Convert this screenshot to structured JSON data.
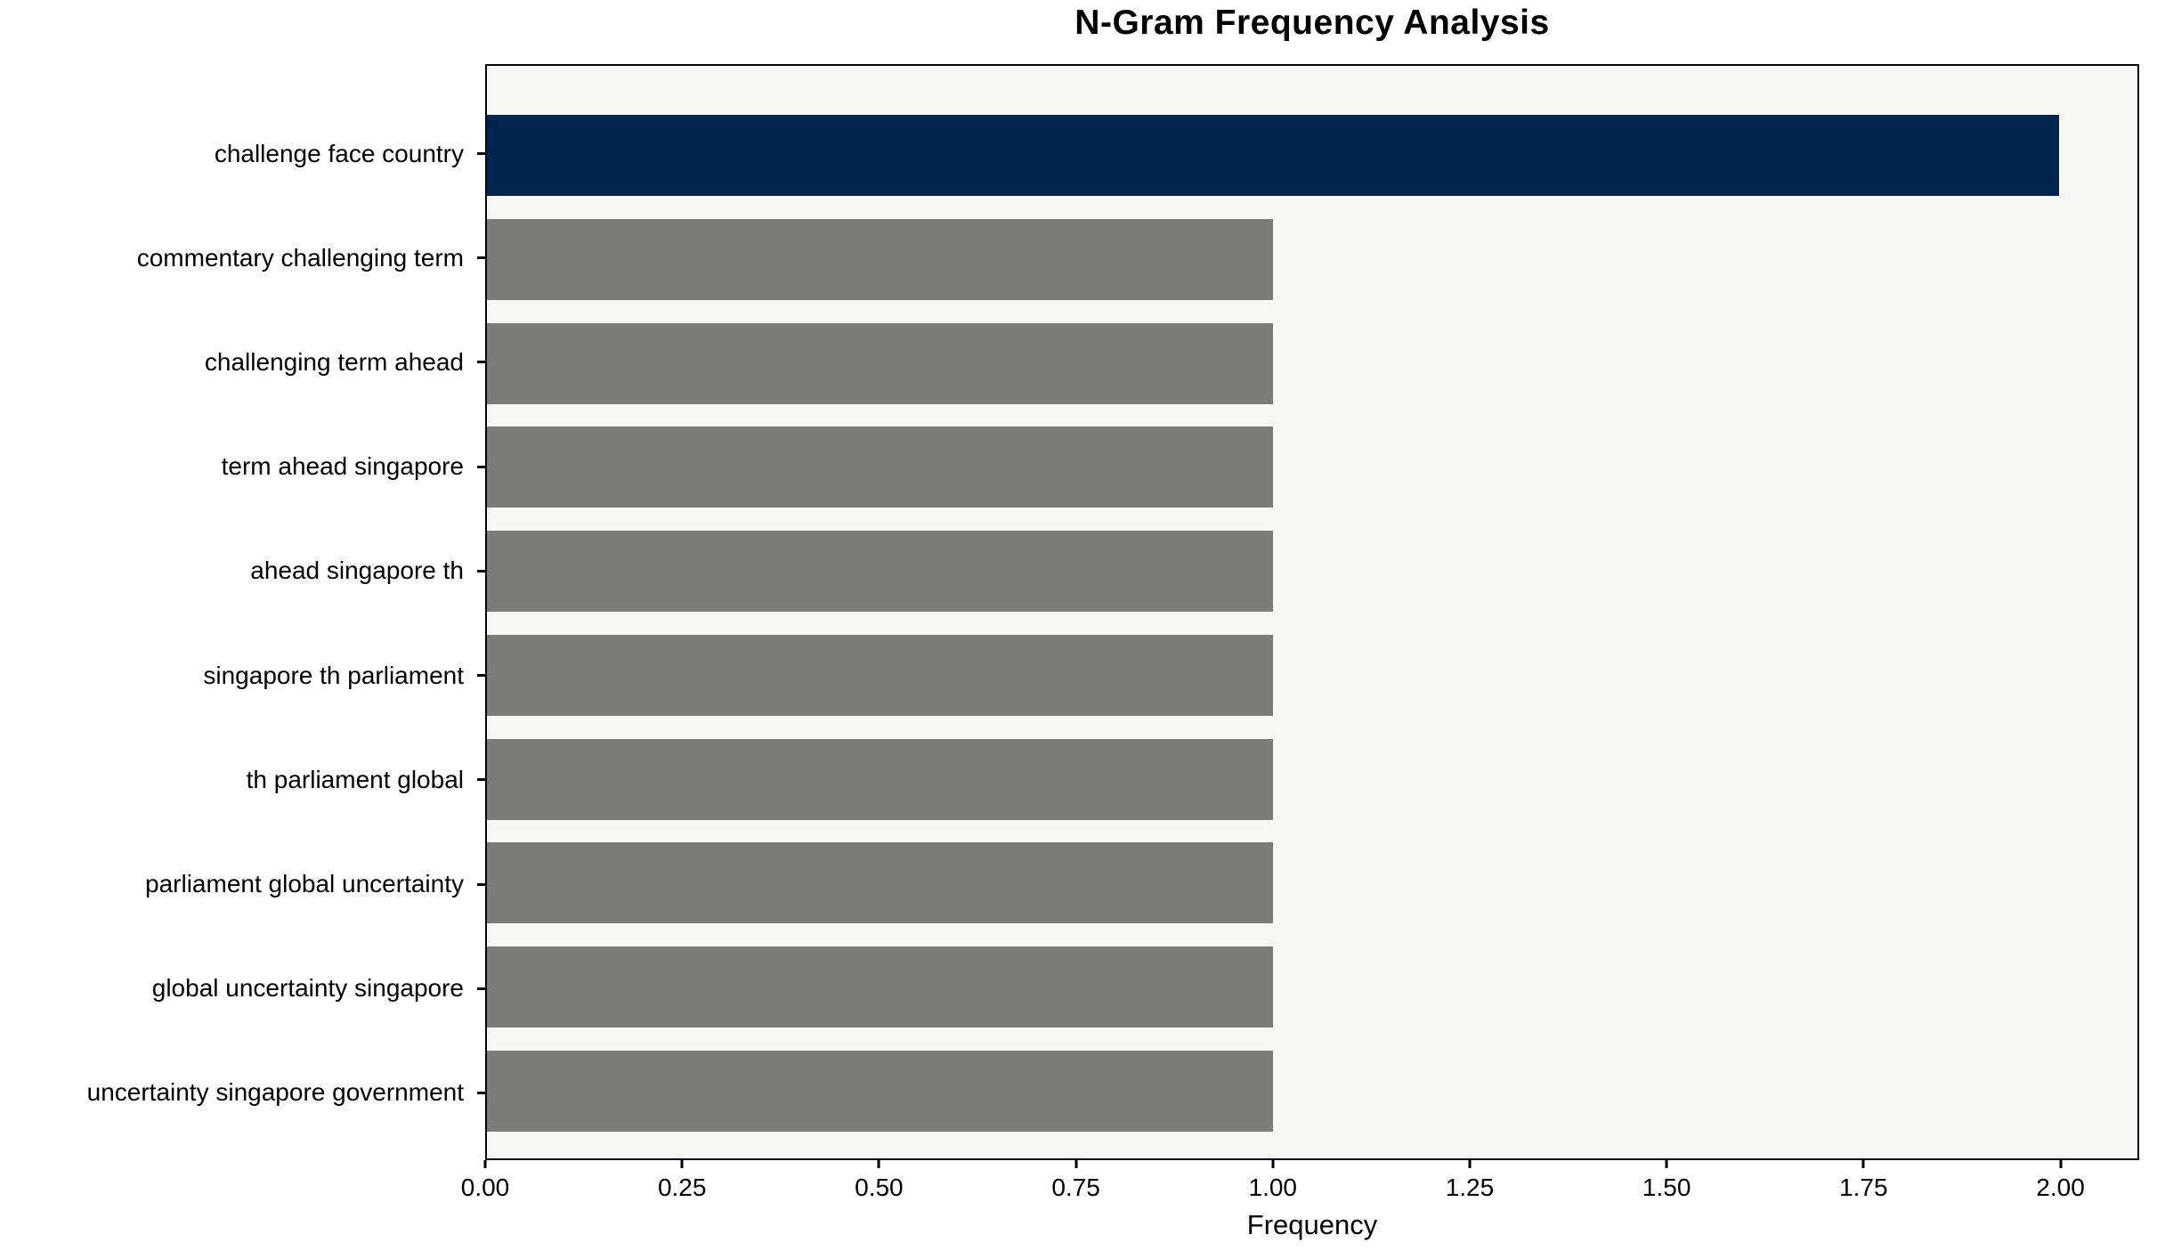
{
  "figure": {
    "title": "N-Gram Frequency Analysis",
    "xlabel": "Frequency"
  },
  "chart_data": {
    "type": "bar",
    "orientation": "horizontal",
    "title": "N-Gram Frequency Analysis",
    "xlabel": "Frequency",
    "ylabel": "",
    "categories": [
      "challenge face country",
      "commentary challenging term",
      "challenging term ahead",
      "term ahead singapore",
      "ahead singapore th",
      "singapore th parliament",
      "th parliament global",
      "parliament global uncertainty",
      "global uncertainty singapore",
      "uncertainty singapore government"
    ],
    "values": [
      2.0,
      1.0,
      1.0,
      1.0,
      1.0,
      1.0,
      1.0,
      1.0,
      1.0,
      1.0
    ],
    "bar_colors": [
      "#01254e",
      "#7b7b78",
      "#7b7b78",
      "#7b7b78",
      "#7b7b78",
      "#7b7b78",
      "#7b7b78",
      "#7b7b78",
      "#7b7b78",
      "#7b7b78"
    ],
    "xlim": [
      0,
      2.1
    ],
    "x_ticks": [
      {
        "value": 0.0,
        "label": "0.00"
      },
      {
        "value": 0.25,
        "label": "0.25"
      },
      {
        "value": 0.5,
        "label": "0.50"
      },
      {
        "value": 0.75,
        "label": "0.75"
      },
      {
        "value": 1.0,
        "label": "1.00"
      },
      {
        "value": 1.25,
        "label": "1.25"
      },
      {
        "value": 1.5,
        "label": "1.50"
      },
      {
        "value": 1.75,
        "label": "1.75"
      },
      {
        "value": 2.0,
        "label": "2.00"
      }
    ],
    "grid": false,
    "legend": false,
    "colors": {
      "highlight": "#01254e",
      "default_bar": "#7b7b78",
      "plot_background": "#f7f7f6",
      "figure_background": "#ffffff",
      "axis": "#000000"
    }
  }
}
